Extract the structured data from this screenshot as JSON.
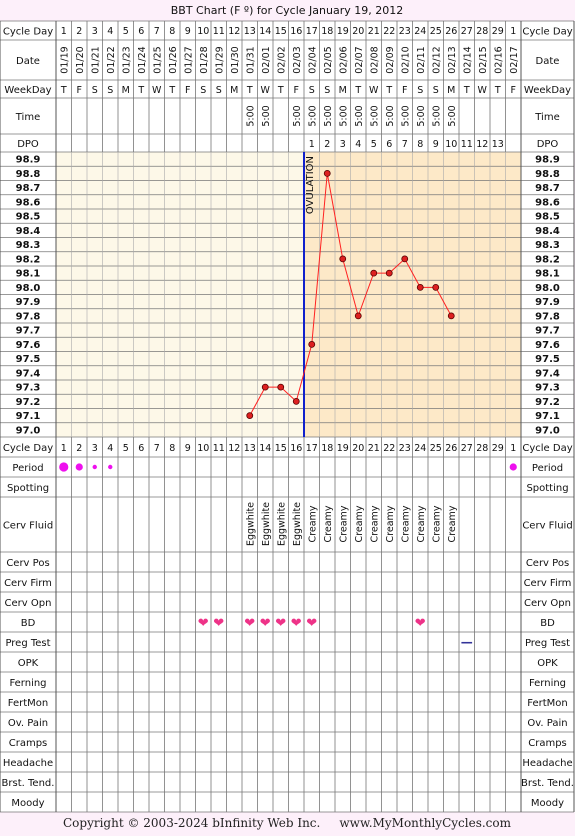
{
  "title": "BBT Chart (F º) for Cycle January 19, 2012",
  "footer": "Copyright © 2003-2024 bInfinity Web Inc.     www.MyMonthlyCycles.com",
  "row_labels": {
    "cycle_day": "Cycle Day",
    "date": "Date",
    "weekday": "WeekDay",
    "time": "Time",
    "dpo": "DPO",
    "period": "Period",
    "spotting": "Spotting",
    "cerv_fluid": "Cerv Fluid",
    "cerv_pos": "Cerv Pos",
    "cerv_firm": "Cerv Firm",
    "cerv_opn": "Cerv Opn",
    "bd": "BD",
    "preg_test": "Preg Test",
    "opk": "OPK",
    "ferning": "Ferning",
    "fertmon": "FertMon",
    "ov_pain": "Ov. Pain",
    "cramps": "Cramps",
    "headache": "Headache",
    "brst_tend": "Brst. Tend.",
    "moody": "Moody"
  },
  "cycle_days": [
    "1",
    "2",
    "3",
    "4",
    "5",
    "6",
    "7",
    "8",
    "9",
    "10",
    "11",
    "12",
    "13",
    "14",
    "15",
    "16",
    "17",
    "18",
    "19",
    "20",
    "21",
    "22",
    "23",
    "24",
    "25",
    "26",
    "27",
    "28",
    "29",
    "1"
  ],
  "dates": [
    "01/19",
    "01/20",
    "01/21",
    "01/22",
    "01/23",
    "01/24",
    "01/25",
    "01/26",
    "01/27",
    "01/28",
    "01/29",
    "01/30",
    "01/31",
    "02/01",
    "02/02",
    "02/03",
    "02/04",
    "02/05",
    "02/06",
    "02/07",
    "02/08",
    "02/09",
    "02/10",
    "02/11",
    "02/12",
    "02/13",
    "02/14",
    "02/15",
    "02/16",
    "02/17"
  ],
  "weekdays": [
    "T",
    "F",
    "S",
    "S",
    "M",
    "T",
    "W",
    "T",
    "F",
    "S",
    "S",
    "M",
    "T",
    "W",
    "T",
    "F",
    "S",
    "S",
    "M",
    "T",
    "W",
    "T",
    "F",
    "S",
    "S",
    "M",
    "T",
    "W",
    "T",
    "F"
  ],
  "times": [
    "",
    "",
    "",
    "",
    "",
    "",
    "",
    "",
    "",
    "",
    "",
    "",
    "5:00",
    "5:00",
    "",
    "5:00",
    "5:00",
    "5:00",
    "5:00",
    "5:00",
    "5:00",
    "5:00",
    "5:00",
    "5:00",
    "5:00",
    "5:00",
    "",
    "",
    "",
    ""
  ],
  "dpo": [
    "",
    "",
    "",
    "",
    "",
    "",
    "",
    "",
    "",
    "",
    "",
    "",
    "",
    "",
    "",
    "",
    "1",
    "2",
    "3",
    "4",
    "5",
    "6",
    "7",
    "8",
    "9",
    "10",
    "11",
    "12",
    "13",
    ""
  ],
  "cerv_fluid": [
    "",
    "",
    "",
    "",
    "",
    "",
    "",
    "",
    "",
    "",
    "",
    "",
    "Eggwhite",
    "Eggwhite",
    "Eggwhite",
    "Eggwhite",
    "Creamy",
    "Creamy",
    "Creamy",
    "Creamy",
    "Creamy",
    "Creamy",
    "Creamy",
    "Creamy",
    "Creamy",
    "Creamy",
    "",
    "",
    "",
    ""
  ],
  "period": [
    3,
    2,
    1,
    1,
    0,
    0,
    0,
    0,
    0,
    0,
    0,
    0,
    0,
    0,
    0,
    0,
    0,
    0,
    0,
    0,
    0,
    0,
    0,
    0,
    0,
    0,
    0,
    0,
    0,
    2
  ],
  "bd": [
    0,
    0,
    0,
    0,
    0,
    0,
    0,
    0,
    0,
    1,
    1,
    0,
    1,
    1,
    1,
    1,
    1,
    0,
    0,
    0,
    0,
    0,
    0,
    1,
    0,
    0,
    0,
    0,
    0,
    0
  ],
  "bd_symbol": "❤",
  "preg_test": [
    0,
    0,
    0,
    0,
    0,
    0,
    0,
    0,
    0,
    0,
    0,
    0,
    0,
    0,
    0,
    0,
    0,
    0,
    0,
    0,
    0,
    0,
    0,
    0,
    0,
    0,
    1,
    0,
    0,
    0
  ],
  "preg_test_symbol": "—",
  "ovulation_label": "OVULATION",
  "colors": {
    "pre_ov_bg": "#fdf8e8",
    "post_ov_bg": "#fde9c8",
    "line": "#ff2020",
    "marker": "#dd2020",
    "ovulation": "#1020cc",
    "heart": "#ee3388",
    "period": "#ee10ee",
    "grid": "#aaaaaa"
  },
  "chart_data": {
    "type": "line",
    "title": "BBT Chart (F º) for Cycle January 19, 2012",
    "x": [
      13,
      14,
      15,
      16,
      17,
      18,
      19,
      20,
      21,
      22,
      23,
      24,
      25,
      26
    ],
    "y": [
      97.1,
      97.3,
      97.3,
      97.2,
      97.6,
      98.8,
      98.2,
      97.8,
      98.1,
      98.1,
      98.2,
      98.0,
      98.0,
      97.8
    ],
    "ylim": [
      97.0,
      98.9
    ],
    "y_ticks": [
      "98.9",
      "98.8",
      "98.7",
      "98.6",
      "98.5",
      "98.4",
      "98.3",
      "98.2",
      "98.1",
      "98.0",
      "97.9",
      "97.8",
      "97.7",
      "97.6",
      "97.5",
      "97.4",
      "97.3",
      "97.2",
      "97.1",
      "97.0"
    ],
    "ovulation_after_day": 16,
    "grid": true
  }
}
